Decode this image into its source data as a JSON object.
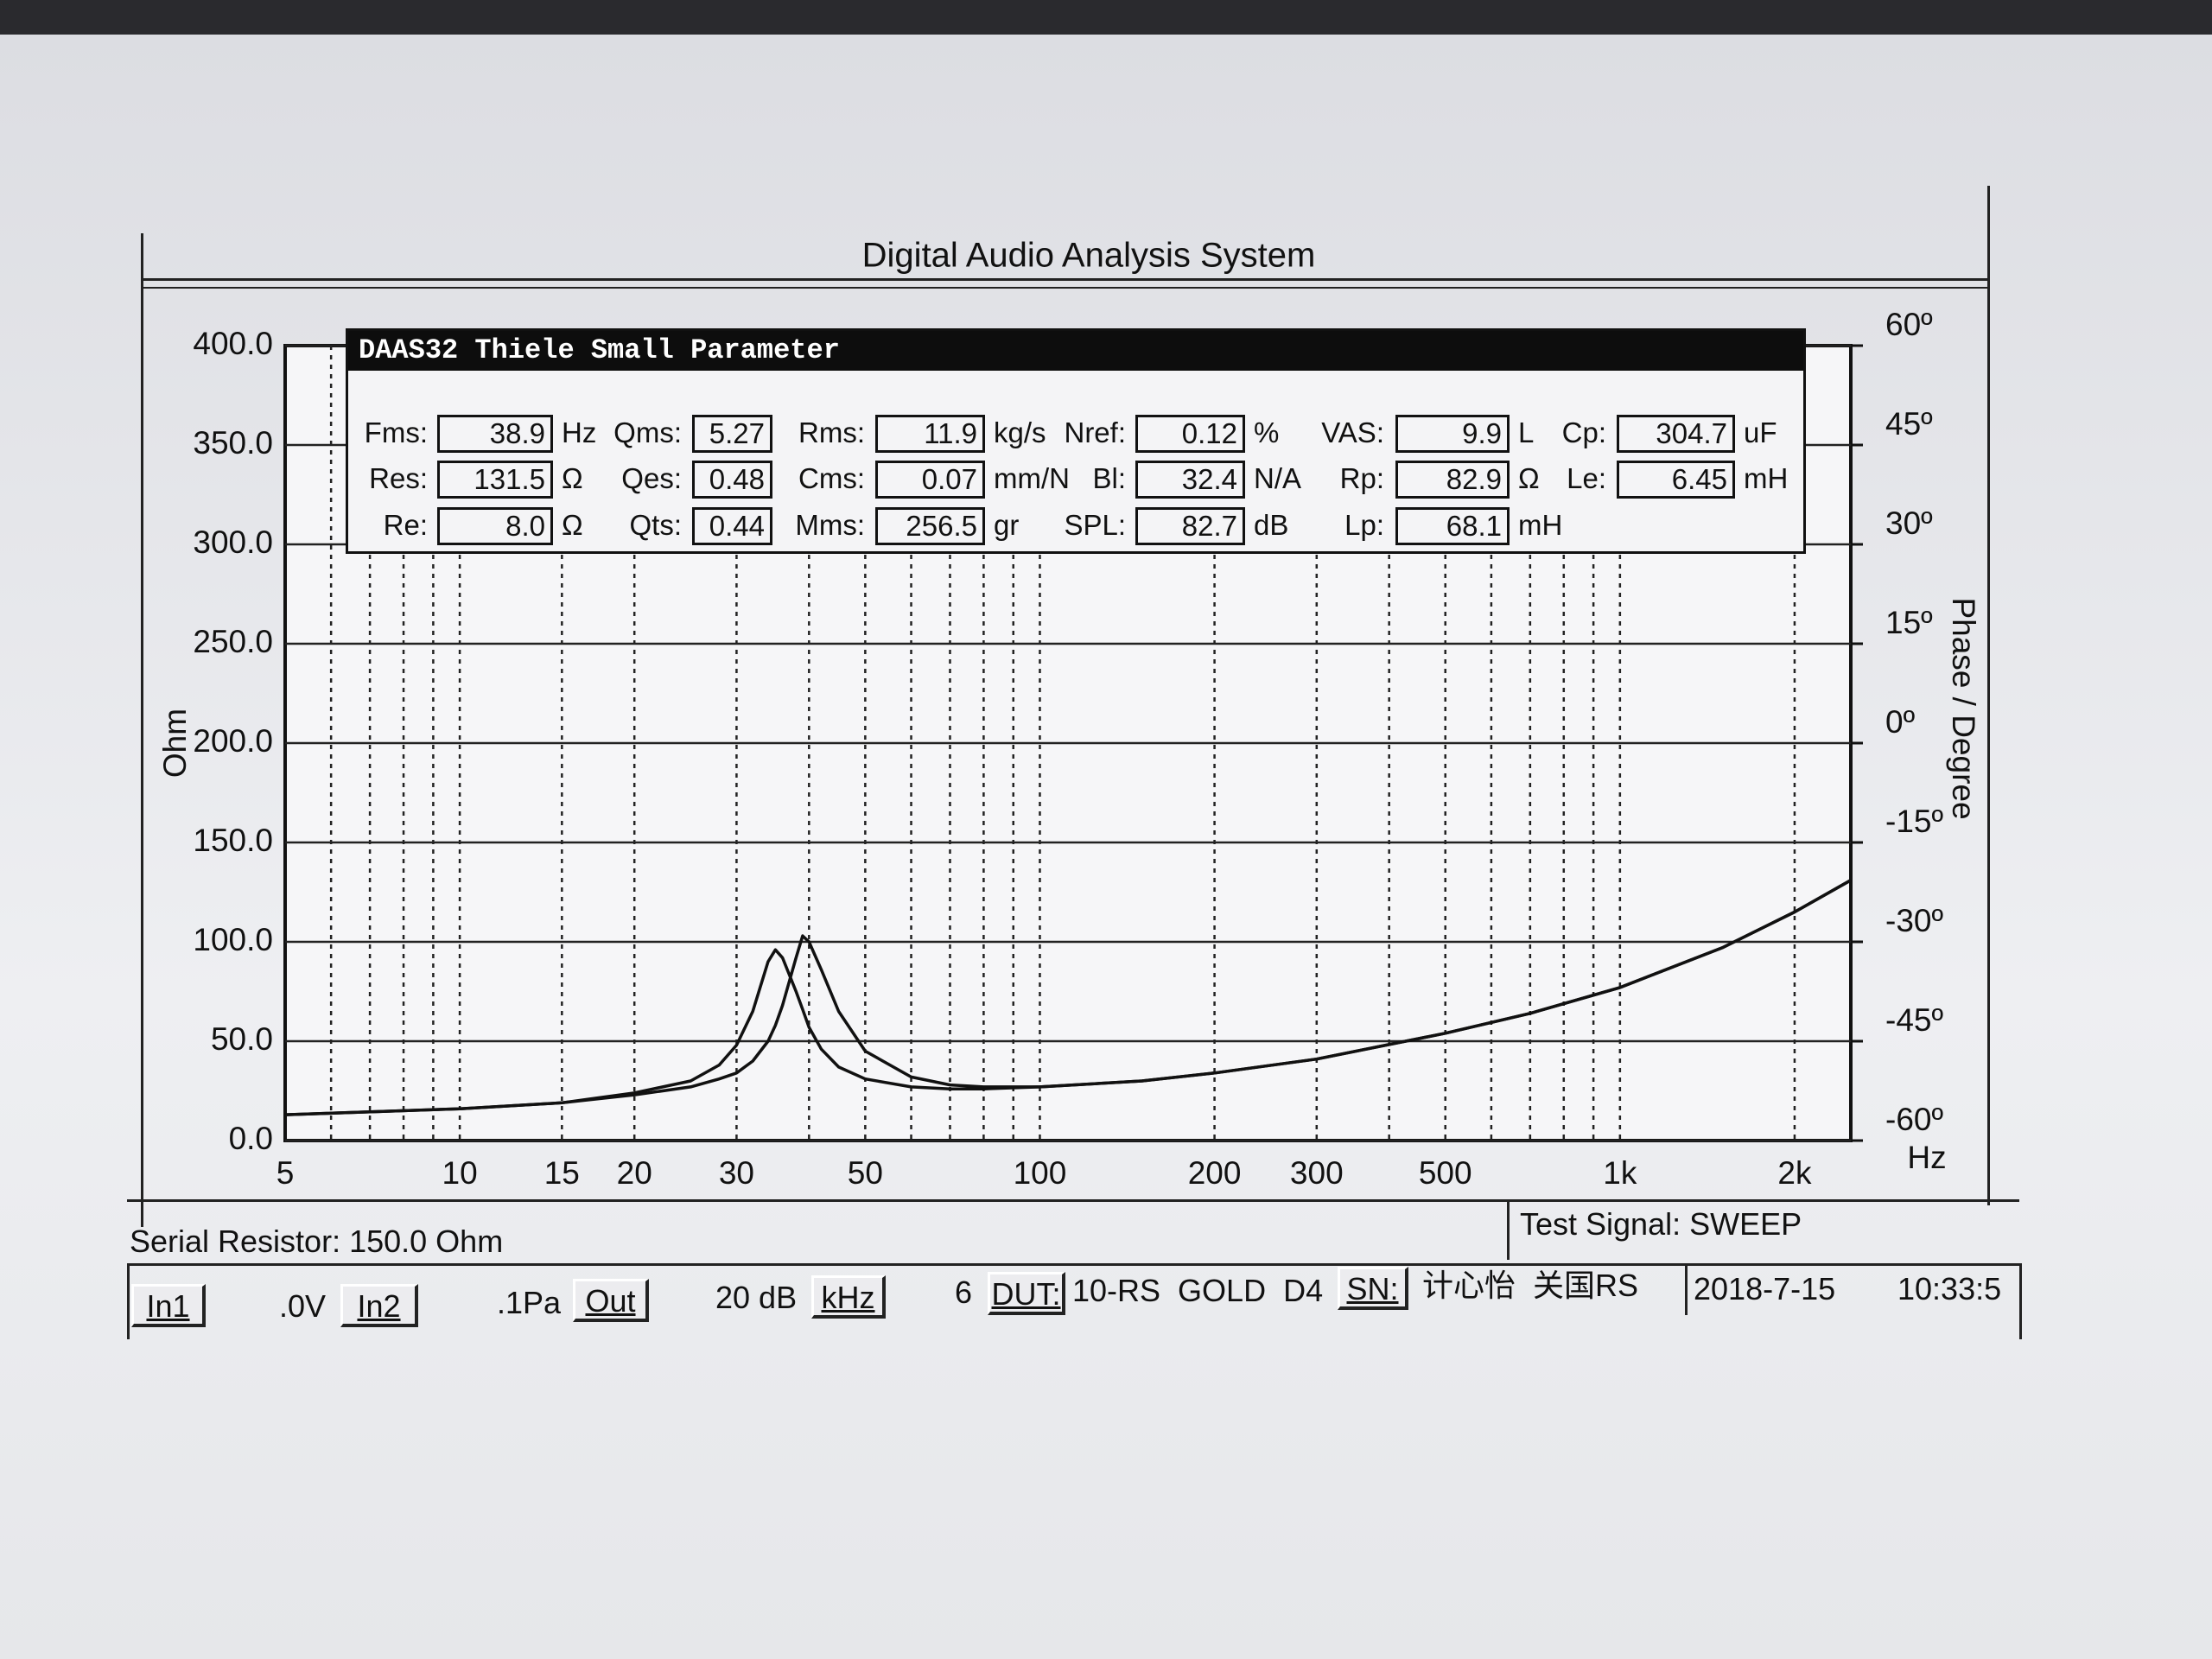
{
  "chart_data": {
    "type": "line",
    "title": "Digital Audio Analysis System",
    "x_label": "Hz",
    "y_label": "Ohm",
    "y2_label": "Phase / Degree",
    "log_x": true,
    "grid": true,
    "x": [
      5,
      10,
      15,
      20,
      25,
      28,
      30,
      32,
      34,
      35,
      36,
      38,
      39,
      40,
      42,
      45,
      50,
      60,
      70,
      80,
      100,
      150,
      200,
      300,
      500,
      700,
      1000,
      1500,
      2000,
      2500
    ],
    "xlim": [
      5,
      2500
    ],
    "xticks": [
      5,
      10,
      15,
      20,
      30,
      50,
      100,
      200,
      300,
      500,
      {
        "value": 1000,
        "label": "1k"
      },
      {
        "value": 2000,
        "label": "2k"
      }
    ],
    "xminor": [
      6,
      7,
      8,
      9,
      40,
      60,
      70,
      80,
      90,
      400,
      600,
      700,
      800,
      900
    ],
    "ylim": [
      0,
      400
    ],
    "yticks": [
      {
        "value": 0,
        "label": "0.0"
      },
      {
        "value": 50,
        "label": "50.0"
      },
      {
        "value": 100,
        "label": "100.0"
      },
      {
        "value": 150,
        "label": "150.0"
      },
      {
        "value": 200,
        "label": "200.0"
      },
      {
        "value": 250,
        "label": "250.0"
      },
      {
        "value": 300,
        "label": "300.0"
      },
      {
        "value": 350,
        "label": "350.0"
      },
      {
        "value": 400,
        "label": "400.0"
      }
    ],
    "y2lim": [
      -60,
      60
    ],
    "y2ticks": [
      {
        "value": 60,
        "label": "60º"
      },
      {
        "value": 45,
        "label": "45º"
      },
      {
        "value": 30,
        "label": "30º"
      },
      {
        "value": 15,
        "label": "15º"
      },
      {
        "value": 0,
        "label": "0º"
      },
      {
        "value": -15,
        "label": "-15º"
      },
      {
        "value": -30,
        "label": "-30º"
      },
      {
        "value": -45,
        "label": "-45º"
      },
      {
        "value": -60,
        "label": "-60º"
      }
    ],
    "series": [
      {
        "color": "#111111",
        "values": [
          13,
          16,
          19,
          24,
          30,
          38,
          48,
          65,
          90,
          96,
          92,
          75,
          66,
          57,
          46,
          37,
          31,
          27,
          26,
          26,
          27,
          30,
          34,
          41,
          54,
          64,
          77,
          97,
          115,
          131
        ]
      },
      {
        "color": "#111111",
        "values": [
          13,
          16,
          19,
          23,
          27,
          31,
          34,
          40,
          50,
          58,
          68,
          92,
          103,
          100,
          86,
          65,
          45,
          32,
          28,
          27,
          27,
          30,
          34,
          41,
          54,
          64,
          77,
          97,
          115,
          131
        ]
      }
    ]
  },
  "parameters": {
    "title": "DAAS32 Thiele Small Parameter",
    "rows": [
      [
        {
          "label": "Fms:",
          "value": "38.9",
          "unit": "Hz"
        },
        {
          "label": "Qms:",
          "value": "5.27"
        },
        {
          "label": "Rms:",
          "value": "11.9",
          "unit": "kg/s"
        },
        {
          "label": "Nref:",
          "value": "0.12",
          "unit": "%"
        },
        {
          "label": "VAS:",
          "value": "9.9",
          "unit": "L"
        },
        {
          "label": "Cp:",
          "value": "304.7",
          "unit": "uF"
        }
      ],
      [
        {
          "label": "Res:",
          "value": "131.5",
          "unit": "Ω"
        },
        {
          "label": "Qes:",
          "value": "0.48"
        },
        {
          "label": "Cms:",
          "value": "0.07",
          "unit": "mm/N"
        },
        {
          "label": "Bl:",
          "value": "32.4",
          "unit": "N/A"
        },
        {
          "label": "Rp:",
          "value": "82.9",
          "unit": "Ω"
        },
        {
          "label": "Le:",
          "value": "6.45",
          "unit": "mH"
        }
      ],
      [
        {
          "label": "Re:",
          "value": "8.0",
          "unit": "Ω"
        },
        {
          "label": "Qts:",
          "value": "0.44"
        },
        {
          "label": "Mms:",
          "value": "256.5",
          "unit": "gr"
        },
        {
          "label": "SPL:",
          "value": "82.7",
          "unit": "dB"
        },
        {
          "label": "Lp:",
          "value": "68.1",
          "unit": "mH"
        }
      ]
    ]
  },
  "status": {
    "serial_resistor": "Serial Resistor: 150.0 Ohm",
    "test_signal": "Test Signal: SWEEP",
    "in1": "In1",
    "in1_level": ".0V",
    "in2": "In2",
    "in2_level": ".1Pa",
    "out": "Out",
    "out_level": "20 dB",
    "khz": "kHz",
    "khz_value": "6",
    "dut_label": "DUT:",
    "dut": "10-RS  GOLD  D4",
    "sn_label": "SN:",
    "sn": "计心怡  关国RS",
    "date": "2018-7-15",
    "time": "10:33:5"
  }
}
